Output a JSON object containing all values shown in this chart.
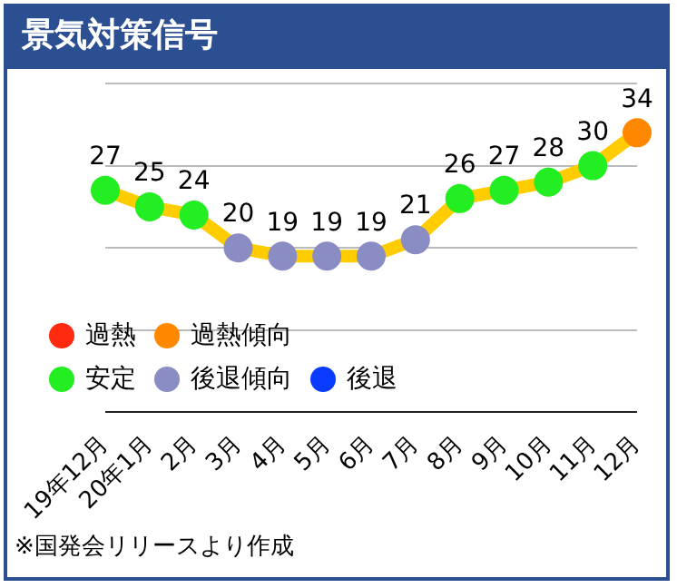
{
  "chart_data": {
    "type": "line",
    "title": "景気対策信号",
    "categories": [
      "19年12月",
      "20年1月",
      "2月",
      "3月",
      "4月",
      "5月",
      "6月",
      "7月",
      "8月",
      "9月",
      "10月",
      "11月",
      "12月"
    ],
    "series": [
      {
        "type": "line",
        "color": "#ffcc00",
        "colors": [
          "#22ee22",
          "#22ee22",
          "#22ee22",
          "#8a8cc4",
          "#8a8cc4",
          "#8a8cc4",
          "#8a8cc4",
          "#8a8cc4",
          "#22ee22",
          "#22ee22",
          "#22ee22",
          "#22ee22",
          "#ff8800"
        ],
        "values": [
          27,
          25,
          24,
          20,
          19,
          19,
          19,
          21,
          26,
          27,
          28,
          30,
          34
        ]
      },
      {
        "type": "scatter",
        "name": "過熱",
        "color": "#ff2a10",
        "values": [
          null,
          null,
          null,
          null,
          null,
          null,
          null,
          null,
          null,
          null,
          null,
          null,
          null
        ]
      },
      {
        "type": "scatter",
        "name": "過熱傾向",
        "color": "#ff8800",
        "values": [
          null,
          null,
          null,
          null,
          null,
          null,
          null,
          null,
          null,
          null,
          null,
          null,
          null
        ]
      },
      {
        "type": "scatter",
        "name": "安定",
        "color": "#22ee22",
        "values": [
          null,
          null,
          null,
          null,
          null,
          null,
          null,
          null,
          null,
          null,
          null,
          null,
          null
        ]
      },
      {
        "type": "scatter",
        "name": "後退傾向",
        "color": "#8a8cc4",
        "values": [
          null,
          null,
          null,
          null,
          null,
          null,
          null,
          null,
          null,
          null,
          null,
          null,
          null
        ]
      },
      {
        "type": "scatter",
        "name": "後退",
        "color": "#0a3cff",
        "values": [
          null,
          null,
          null,
          null,
          null,
          null,
          null,
          null,
          null,
          null,
          null,
          null,
          null
        ]
      }
    ],
    "ylim": [
      0,
      40
    ],
    "yticks": [
      {
        "value": 0,
        "label": null
      },
      {
        "value": 10,
        "label": null
      },
      {
        "value": 20,
        "label": null
      },
      {
        "value": 30,
        "label": null
      },
      {
        "value": 40,
        "label": null
      }
    ],
    "grid": "y",
    "tick_labels": "x",
    "legend": "bottom left",
    "marker": "circle",
    "data_labels": true,
    "annotations": [
      "※国発会リリースより作成"
    ]
  }
}
